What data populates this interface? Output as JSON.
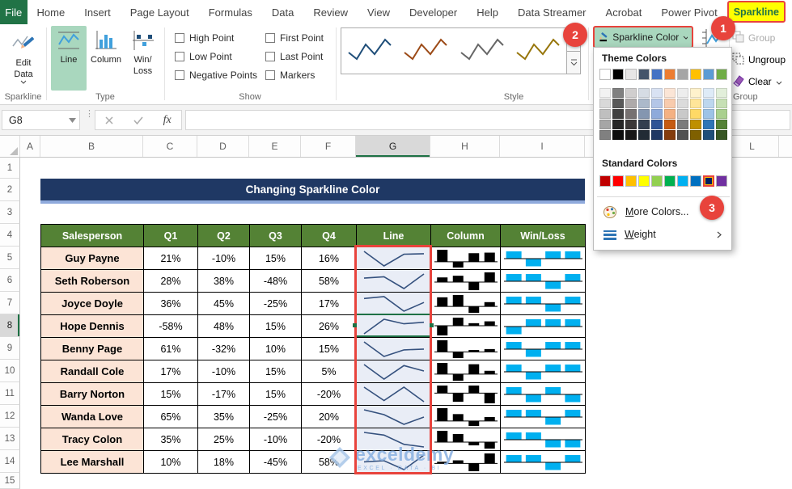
{
  "ribbon": {
    "file_tab": "File",
    "tabs": [
      "Home",
      "Insert",
      "Page Layout",
      "Formulas",
      "Data",
      "Review",
      "View",
      "Developer",
      "Help",
      "Data Streamer",
      "Acrobat",
      "Power Pivot"
    ],
    "active_tab": "Sparkline",
    "edit_data_label": "Edit Data",
    "group_labels": {
      "sparkline": "Sparkline",
      "type": "Type",
      "show": "Show",
      "style": "Style",
      "group": "Group"
    },
    "type_buttons": [
      "Line",
      "Column",
      "Win/Loss"
    ],
    "active_type": "Line",
    "show_checkboxes": [
      "High Point",
      "Low Point",
      "Negative Points",
      "First Point",
      "Last Point",
      "Markers"
    ],
    "style_preview_colors": [
      "#1F4E79",
      "#9C4A17",
      "#666666",
      "#97760B"
    ],
    "sparkline_color_label": "Sparkline Color",
    "group_buttons": [
      {
        "label": "Group",
        "enabled": false
      },
      {
        "label": "Ungroup",
        "enabled": true
      },
      {
        "label": "Clear",
        "enabled": true,
        "has_dropdown": true
      }
    ]
  },
  "formula_bar": {
    "name_box": "G8",
    "fx_label": "fx",
    "formula": ""
  },
  "grid": {
    "columns": [
      "A",
      "B",
      "C",
      "D",
      "E",
      "F",
      "G",
      "H",
      "I"
    ],
    "far_column": "L",
    "active_column": "G",
    "rows": [
      "1",
      "2",
      "3",
      "4",
      "5",
      "6",
      "7",
      "8",
      "9",
      "10",
      "11",
      "12",
      "13",
      "14",
      "15"
    ],
    "active_row": "8"
  },
  "sheet": {
    "title": "Changing Sparkline Color",
    "table": {
      "headers": [
        "Salesperson",
        "Q1",
        "Q2",
        "Q3",
        "Q4",
        "Line",
        "Column",
        "Win/Loss"
      ],
      "value_suffix": "%",
      "rows": [
        {
          "salesperson": "Guy Payne",
          "values": [
            21,
            -10,
            15,
            16
          ]
        },
        {
          "salesperson": "Seth Roberson",
          "values": [
            28,
            38,
            -48,
            58
          ]
        },
        {
          "salesperson": "Joyce Doyle",
          "values": [
            36,
            45,
            -25,
            17
          ]
        },
        {
          "salesperson": "Hope Dennis",
          "values": [
            -58,
            48,
            15,
            26
          ]
        },
        {
          "salesperson": "Benny Page",
          "values": [
            61,
            -32,
            10,
            15
          ]
        },
        {
          "salesperson": "Randall Cole",
          "values": [
            17,
            -10,
            15,
            5
          ]
        },
        {
          "salesperson": "Barry Norton",
          "values": [
            15,
            -17,
            15,
            -20
          ]
        },
        {
          "salesperson": "Wanda Love",
          "values": [
            65,
            35,
            -25,
            20
          ]
        },
        {
          "salesperson": "Tracy Colon",
          "values": [
            35,
            25,
            -10,
            -20
          ]
        },
        {
          "salesperson": "Lee Marshall",
          "values": [
            10,
            18,
            -45,
            58
          ]
        }
      ]
    }
  },
  "color_menu": {
    "theme_title": "Theme Colors",
    "theme_colors": [
      "#FFFFFF",
      "#000000",
      "#E7E6E6",
      "#44546A",
      "#4472C4",
      "#ED7D31",
      "#A5A5A5",
      "#FFC000",
      "#5B9BD5",
      "#70AD47"
    ],
    "tint_rows": [
      [
        "#F2F2F2",
        "#808080",
        "#D0CECE",
        "#D6DCE4",
        "#D9E2F3",
        "#FBE5D6",
        "#EDEDED",
        "#FFF2CC",
        "#DEEBF7",
        "#E2EFDA"
      ],
      [
        "#D9D9D9",
        "#595959",
        "#AEAAAA",
        "#ACB9CA",
        "#B4C6E7",
        "#F8CBAD",
        "#DBDBDB",
        "#FFE599",
        "#BDD7EE",
        "#C6E0B4"
      ],
      [
        "#BFBFBF",
        "#404040",
        "#767171",
        "#8496B0",
        "#8EAADB",
        "#F4B183",
        "#C9C9C9",
        "#FFD966",
        "#9DC3E6",
        "#A9D08E"
      ],
      [
        "#A6A6A6",
        "#262626",
        "#3B3838",
        "#333F4F",
        "#2F5496",
        "#C55A11",
        "#7B7B7B",
        "#BF9000",
        "#2E75B6",
        "#548235"
      ],
      [
        "#808080",
        "#0D0D0D",
        "#181717",
        "#222B35",
        "#1F3864",
        "#843C0C",
        "#525252",
        "#7F6000",
        "#1F4E79",
        "#375623"
      ]
    ],
    "standard_title": "Standard Colors",
    "standard_colors": [
      "#C00000",
      "#FF0000",
      "#FFC000",
      "#FFFF00",
      "#92D050",
      "#00B050",
      "#00B0F0",
      "#0070C0",
      "#002060",
      "#7030A0"
    ],
    "selected_standard_index": 8,
    "more_colors": {
      "accel": "M",
      "rest": "ore Colors..."
    },
    "weight": {
      "accel": "W",
      "rest": "eight"
    }
  },
  "annotations": {
    "badges": [
      "1",
      "2",
      "3"
    ]
  },
  "watermark": {
    "brand": "exceldemy",
    "tagline": "EXCEL · DATA · BI"
  },
  "colors": {
    "accent_green": "#217346",
    "selection_red": "#E8433C",
    "active_border_green": "#1E7145",
    "line_spark": "#35517E",
    "column_spark": "#000000",
    "winloss_bar": "#00B0F0",
    "table_header_bg": "#548235",
    "salesperson_bg": "#FCE4D6",
    "line_cell_bg": "#E9EDF6",
    "title_bg": "#1F3864",
    "title_underline": "#8FAADC",
    "tab_highlight": "#FFFF00",
    "ribbon_selected_bg": "#A9D7BE"
  }
}
